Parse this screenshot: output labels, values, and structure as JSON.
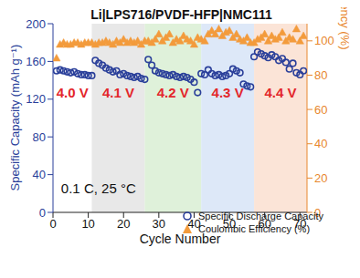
{
  "chart_data": {
    "type": "scatter",
    "title": "Li|LPS716/PVDF-HFP|NMC111",
    "x_label": "Cycle Number",
    "y_label": "Specific Capacity (mAh g⁻¹)",
    "y2_label": "Coulombic Efficiency (%)",
    "annotation": "0.1 C, 25 °C",
    "xlim": [
      0,
      72
    ],
    "xticks": [
      0,
      10,
      20,
      30,
      40,
      50,
      60,
      70
    ],
    "ylim": [
      0,
      200
    ],
    "yticks": [
      0,
      40,
      80,
      120,
      160,
      200
    ],
    "y2lim": [
      0,
      110
    ],
    "y2ticks": [
      0,
      20,
      40,
      60,
      80,
      100
    ],
    "grid": false,
    "legend": "lower right",
    "regions": [
      {
        "label": "4.0 V",
        "start": 0,
        "end": 11,
        "color": "#ffffff"
      },
      {
        "label": "4.1 V",
        "start": 11,
        "end": 26,
        "color": "#e6e6e6"
      },
      {
        "label": "4.2 V",
        "start": 26,
        "end": 42,
        "color": "#dcefd6"
      },
      {
        "label": "4.3 V",
        "start": 42,
        "end": 57,
        "color": "#d9e6f7"
      },
      {
        "label": "4.4 V",
        "start": 57,
        "end": 72,
        "color": "#fbe1d3"
      }
    ],
    "x": [
      1,
      2,
      3,
      4,
      5,
      6,
      7,
      8,
      9,
      10,
      11,
      12,
      13,
      14,
      15,
      16,
      17,
      18,
      19,
      20,
      21,
      22,
      23,
      24,
      25,
      26,
      27,
      28,
      29,
      30,
      31,
      32,
      33,
      34,
      35,
      36,
      37,
      38,
      39,
      40,
      41,
      42,
      43,
      44,
      45,
      46,
      47,
      48,
      49,
      50,
      51,
      52,
      53,
      54,
      55,
      56,
      57,
      58,
      59,
      60,
      61,
      62,
      63,
      64,
      65,
      66,
      67,
      68,
      69,
      70,
      71
    ],
    "series": [
      {
        "name": "Specific Discharge Capacity",
        "color": "#2a3f9a",
        "marker": "circle",
        "values": [
          150,
          151,
          150,
          149,
          148,
          149,
          147,
          146,
          146,
          145,
          145,
          161,
          158,
          156,
          153,
          151,
          149,
          150,
          146,
          147,
          145,
          144,
          143,
          144,
          142,
          141,
          162,
          156,
          150,
          148,
          147,
          146,
          145,
          146,
          144,
          143,
          144,
          143,
          141,
          138,
          127,
          147,
          146,
          151,
          147,
          145,
          146,
          144,
          145,
          147,
          152,
          150,
          148,
          136,
          134,
          133,
          165,
          170,
          168,
          166,
          164,
          167,
          165,
          161,
          163,
          159,
          152,
          158,
          148,
          146,
          150
        ]
      },
      {
        "name": "Coulombic Efficiency (%)",
        "color": "#f39b3c",
        "marker": "triangle",
        "axis": "y2",
        "values": [
          90,
          98,
          99,
          98,
          98,
          99,
          99,
          98,
          99,
          99,
          99,
          98,
          99,
          99,
          100,
          99,
          98,
          100,
          99,
          101,
          99,
          100,
          99,
          100,
          98,
          100,
          100,
          99,
          101,
          104,
          100,
          102,
          104,
          99,
          101,
          100,
          103,
          101,
          100,
          98,
          102,
          101,
          100,
          104,
          106,
          104,
          107,
          103,
          105,
          106,
          102,
          104,
          101,
          100,
          102,
          99,
          99,
          101,
          102,
          104,
          100,
          103,
          101,
          102,
          105,
          100,
          102,
          101,
          107,
          100,
          103
        ]
      }
    ]
  }
}
